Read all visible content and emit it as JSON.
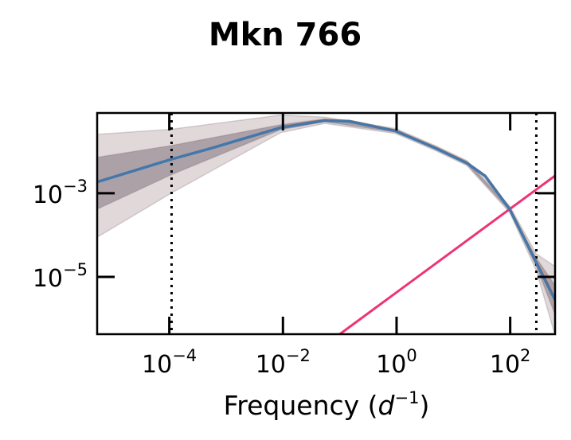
{
  "chart_data": {
    "type": "line",
    "title": "Mkn 766",
    "xlabel": "Frequency",
    "xlabel_unit_base": "d",
    "xlabel_unit_exp": "−1",
    "ylabel": "",
    "xscale": "log",
    "yscale": "log",
    "xlim_log10": [
      -5.27,
      2.79
    ],
    "ylim_log10": [
      -6.37,
      -1.08
    ],
    "x_ticks": [
      {
        "base": "10",
        "exp": "−4",
        "log10": -4
      },
      {
        "base": "10",
        "exp": "−2",
        "log10": -2
      },
      {
        "base": "10",
        "exp": "0",
        "log10": 0
      },
      {
        "base": "10",
        "exp": "2",
        "log10": 2
      }
    ],
    "y_ticks": [
      {
        "base": "10",
        "exp": "−3",
        "log10": -3
      },
      {
        "base": "10",
        "exp": "−5",
        "log10": -5
      }
    ],
    "vlines_log10": [
      -3.96,
      2.46
    ],
    "colors": {
      "model": "#4477aa",
      "data": "#ee7733",
      "noise": "#ee3377",
      "band": "#b49ea2",
      "dark_band": "#6e5f6b",
      "vline": "#000000"
    },
    "series": [
      {
        "name": "model",
        "log10_x": [
          -5.27,
          -3.97,
          -3.28,
          -2.04,
          -1.26,
          -0.83,
          -0.02,
          0.7,
          1.24,
          1.56,
          1.99,
          2.46,
          2.79
        ],
        "log10_y": [
          -2.73,
          -2.19,
          -1.93,
          -1.43,
          -1.26,
          -1.28,
          -1.51,
          -1.93,
          -2.28,
          -2.59,
          -3.38,
          -4.66,
          -5.55
        ]
      },
      {
        "name": "data",
        "log10_x": [
          -2.04,
          -1.26,
          -0.83,
          -0.02,
          0.7,
          1.24,
          1.56,
          1.99,
          2.46,
          2.79
        ],
        "log10_y": [
          -1.42,
          -1.25,
          -1.27,
          -1.5,
          -1.92,
          -2.27,
          -2.58,
          -3.37,
          -4.64,
          -5.52
        ]
      },
      {
        "name": "noise",
        "log10_x": [
          -1.0,
          2.79
        ],
        "log10_y": [
          -6.37,
          -2.58
        ]
      }
    ],
    "bands": [
      {
        "name": "outer",
        "log10_x": [
          -5.27,
          -3.97,
          -2.04,
          -1.26,
          -0.02,
          0.7,
          1.24,
          1.99,
          2.46,
          2.79
        ],
        "lower": [
          -4.05,
          -3.0,
          -1.55,
          -1.33,
          -1.57,
          -1.99,
          -2.34,
          -3.46,
          -4.85,
          -6.4
        ],
        "upper": [
          -1.59,
          -1.47,
          -1.13,
          -1.18,
          -1.45,
          -1.87,
          -2.22,
          -3.3,
          -4.45,
          -4.75
        ]
      },
      {
        "name": "inner",
        "log10_x": [
          -5.27,
          -3.97,
          -2.04,
          -1.26,
          -0.02,
          0.7,
          1.24,
          1.99,
          2.46,
          2.79
        ],
        "lower": [
          -3.38,
          -2.56,
          -1.48,
          -1.29,
          -1.54,
          -1.96,
          -2.31,
          -3.42,
          -4.75,
          -5.9
        ],
        "upper": [
          -2.14,
          -1.86,
          -1.36,
          -1.22,
          -1.48,
          -1.9,
          -2.25,
          -3.34,
          -4.55,
          -5.2
        ]
      }
    ]
  }
}
